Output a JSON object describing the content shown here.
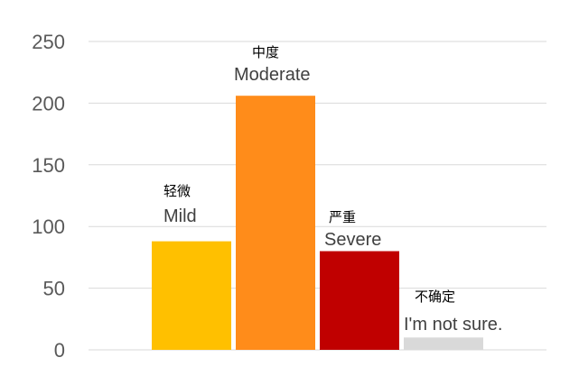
{
  "chart_data": {
    "type": "bar",
    "categories": [
      "Mild",
      "Moderate",
      "Severe",
      "I'm not sure."
    ],
    "category_labels": [
      {
        "zh": "轻微",
        "en": "Mild"
      },
      {
        "zh": "中度",
        "en": "Moderate"
      },
      {
        "zh": "严重",
        "en": "Severe"
      },
      {
        "zh": "不确定",
        "en": "I'm not sure."
      }
    ],
    "values": [
      88,
      206,
      80,
      10
    ],
    "colors": [
      "#FFC000",
      "#FF8C1A",
      "#C00000",
      "#D9D9D9"
    ],
    "ylim": [
      0,
      250
    ],
    "yticks": [
      "0",
      "50",
      "100",
      "150",
      "200",
      "250"
    ],
    "grid": true,
    "gridline_color": "#D9D9D9",
    "legend": "none",
    "title": "",
    "xlabel": "",
    "ylabel": ""
  }
}
